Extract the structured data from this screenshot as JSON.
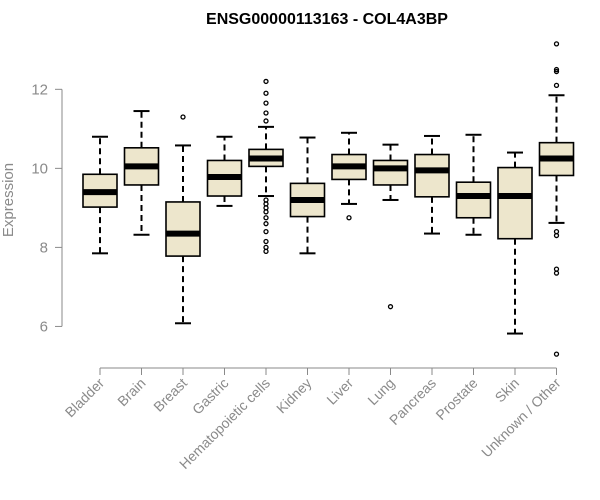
{
  "chart_data": {
    "type": "boxplot",
    "title": "ENSG00000113163 - COL4A3BP",
    "ylabel": "Expression",
    "xlabel": "",
    "ylim": [
      5.1,
      13.4
    ],
    "yticks": [
      6,
      8,
      10,
      12
    ],
    "colors": {
      "box_fill": "#ede6cc",
      "stroke": "#000000",
      "axis": "#8a8a8a"
    },
    "categories": [
      "Bladder",
      "Brain",
      "Breast",
      "Gastric",
      "Hematopoietic cells",
      "Kidney",
      "Liver",
      "Lung",
      "Pancreas",
      "Prostate",
      "Skin",
      "Unknown / Other"
    ],
    "boxes": [
      {
        "min": 7.85,
        "q1": 9.02,
        "median": 9.4,
        "q3": 9.85,
        "max": 10.8,
        "outliers": []
      },
      {
        "min": 8.32,
        "q1": 9.58,
        "median": 10.05,
        "q3": 10.52,
        "max": 11.45,
        "outliers": []
      },
      {
        "min": 6.08,
        "q1": 7.78,
        "median": 8.35,
        "q3": 9.15,
        "max": 10.58,
        "outliers": [
          11.3
        ]
      },
      {
        "min": 9.05,
        "q1": 9.3,
        "median": 9.78,
        "q3": 10.2,
        "max": 10.8,
        "outliers": []
      },
      {
        "min": 9.3,
        "q1": 10.05,
        "median": 10.25,
        "q3": 10.48,
        "max": 11.05,
        "outliers": [
          12.2,
          11.9,
          11.65,
          11.4,
          11.2,
          9.2,
          9.1,
          9.0,
          8.9,
          8.75,
          8.6,
          8.4,
          8.15,
          8.0,
          7.9
        ]
      },
      {
        "min": 7.85,
        "q1": 8.78,
        "median": 9.2,
        "q3": 9.62,
        "max": 10.78,
        "outliers": []
      },
      {
        "min": 9.1,
        "q1": 9.72,
        "median": 10.05,
        "q3": 10.35,
        "max": 10.9,
        "outliers": [
          8.75
        ]
      },
      {
        "min": 9.2,
        "q1": 9.58,
        "median": 10.0,
        "q3": 10.2,
        "max": 10.6,
        "outliers": [
          6.5
        ]
      },
      {
        "min": 8.35,
        "q1": 9.28,
        "median": 9.95,
        "q3": 10.35,
        "max": 10.82,
        "outliers": []
      },
      {
        "min": 8.32,
        "q1": 8.75,
        "median": 9.3,
        "q3": 9.65,
        "max": 10.85,
        "outliers": []
      },
      {
        "min": 5.82,
        "q1": 8.22,
        "median": 9.3,
        "q3": 10.02,
        "max": 10.4,
        "outliers": []
      },
      {
        "min": 8.62,
        "q1": 9.82,
        "median": 10.25,
        "q3": 10.65,
        "max": 11.85,
        "outliers": [
          13.15,
          12.5,
          12.45,
          12.1,
          8.4,
          8.3,
          7.45,
          7.35,
          5.3
        ]
      }
    ]
  }
}
